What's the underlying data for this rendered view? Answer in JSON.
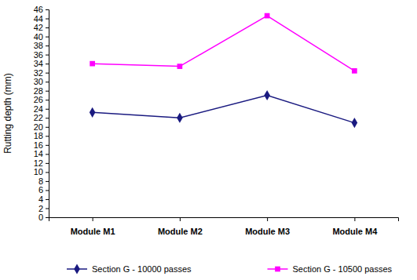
{
  "chart_data": {
    "type": "line",
    "y_label": "Rutting depth (mm)",
    "categories": [
      "Module M1",
      "Module M2",
      "Module M3",
      "Module M4"
    ],
    "series": [
      {
        "name": "Section G - 10000 passes",
        "color": "#1a1a80",
        "marker": "diamond",
        "line_style": "solid",
        "values": [
          23.2,
          22,
          27,
          20.9
        ]
      },
      {
        "name": "Section G - 10500 passes",
        "color": "#ff00ff",
        "marker": "square",
        "line_style": "solid",
        "values": [
          34,
          33.4,
          44.6,
          32.4
        ]
      }
    ],
    "ylim": [
      0,
      46
    ],
    "yticks": [
      0,
      2,
      4,
      6,
      8,
      10,
      12,
      14,
      16,
      18,
      20,
      22,
      24,
      26,
      28,
      30,
      32,
      34,
      36,
      38,
      40,
      42,
      44,
      46
    ],
    "grid": false,
    "legend": "bottom"
  }
}
